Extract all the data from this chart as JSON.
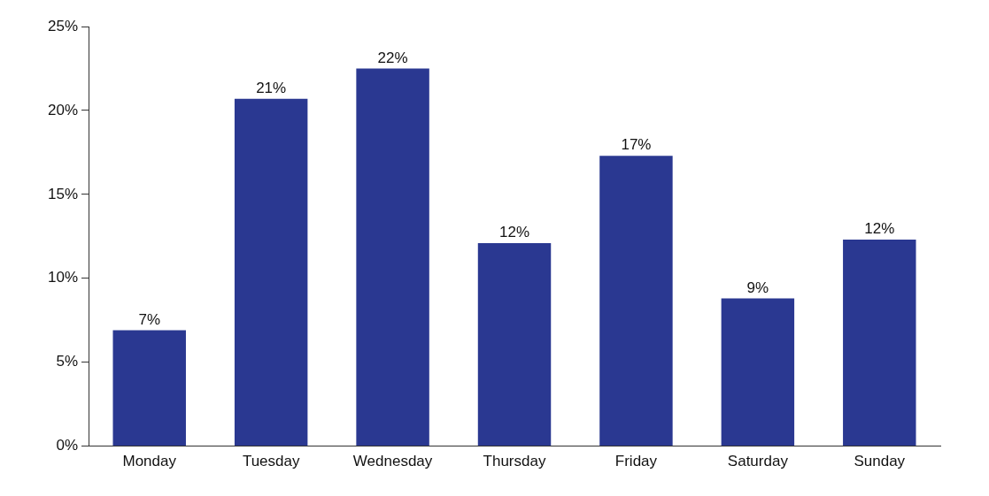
{
  "chart_data": {
    "type": "bar",
    "categories": [
      "Monday",
      "Tuesday",
      "Wednesday",
      "Thursday",
      "Friday",
      "Saturday",
      "Sunday"
    ],
    "values": [
      6.9,
      20.7,
      22.5,
      12.1,
      17.3,
      8.8,
      12.3
    ],
    "value_labels": [
      "7%",
      "21%",
      "22%",
      "12%",
      "17%",
      "9%",
      "12%"
    ],
    "color": "#2a3891",
    "ylim": [
      0,
      25
    ],
    "yticks": [
      {
        "value": 0,
        "label": "0%"
      },
      {
        "value": 5,
        "label": "5%"
      },
      {
        "value": 10,
        "label": "10%"
      },
      {
        "value": 15,
        "label": "15%"
      },
      {
        "value": 20,
        "label": "20%"
      },
      {
        "value": 25,
        "label": "25%"
      }
    ],
    "grid": false,
    "legend": false
  }
}
